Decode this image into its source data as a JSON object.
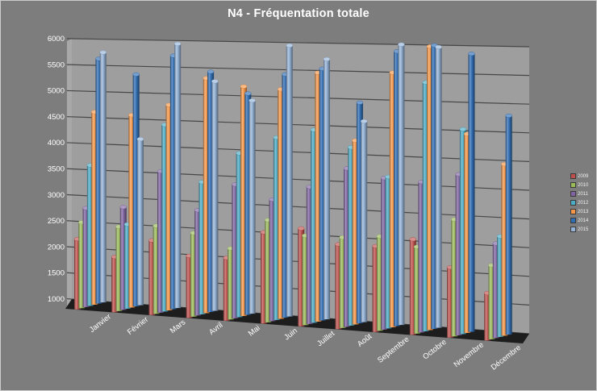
{
  "title": "N4 - Fréquentation totale",
  "colors": {
    "background": "#7d7d7d",
    "back_wall": "#9e9e9e",
    "side_wall": "#a8a8a8",
    "floor": "#1d1d1d",
    "gridline": "#474747",
    "axis_text": "#ffffff",
    "frame_border": "#cdcdcd"
  },
  "y_axis": {
    "min": 1000,
    "max": 6000,
    "step": 500,
    "tick_labels": [
      "1000",
      "1500",
      "2000",
      "2500",
      "3000",
      "3500",
      "4000",
      "4500",
      "5000",
      "5500",
      "6000"
    ]
  },
  "chart_data": {
    "type": "bar",
    "variant": "3d-cylinder-clustered",
    "title": "N4 - Fréquentation totale",
    "xlabel": "",
    "ylabel": "",
    "ylim": [
      1000,
      6000
    ],
    "grid": true,
    "legend_position": "right",
    "categories": [
      "Janvier",
      "Février",
      "Mars",
      "Avril",
      "Mai",
      "Juin",
      "Juillet",
      "Août",
      "Septembre",
      "Octobre",
      "Novembre",
      "Décembre"
    ],
    "series": [
      {
        "name": "2009",
        "color": "#C0504D",
        "values": [
          2350,
          2050,
          2400,
          2150,
          2150,
          2650,
          2750,
          2500,
          2500,
          2650,
          2200,
          1800
        ]
      },
      {
        "name": "2010",
        "color": "#9BBB59",
        "values": [
          2650,
          2600,
          2650,
          2550,
          2300,
          2850,
          2600,
          2600,
          2650,
          2500,
          3000,
          2250
        ]
      },
      {
        "name": "2011",
        "color": "#8064A2",
        "values": [
          2900,
          2950,
          3650,
          2950,
          3450,
          3200,
          3450,
          3800,
          3650,
          3600,
          3750,
          2600
        ]
      },
      {
        "name": "2012",
        "color": "#4BACC6",
        "values": [
          3700,
          2600,
          4500,
          3450,
          4000,
          4300,
          4450,
          4150,
          3650,
          5300,
          4500,
          2700
        ]
      },
      {
        "name": "2013",
        "color": "#F79646",
        "values": [
          4700,
          4650,
          4850,
          5350,
          5200,
          5150,
          5450,
          4250,
          5450,
          5900,
          4400,
          3900
        ]
      },
      {
        "name": "2014",
        "color": "#2E6DB4",
        "values": [
          5700,
          5400,
          5750,
          5450,
          5050,
          5400,
          5500,
          4900,
          5800,
          5900,
          5750,
          4700
        ]
      },
      {
        "name": "2015",
        "color": "#95B3D7",
        "values": [
          5800,
          4150,
          5950,
          5250,
          4900,
          5900,
          5650,
          4550,
          5900,
          5850,
          null,
          null
        ]
      }
    ]
  }
}
